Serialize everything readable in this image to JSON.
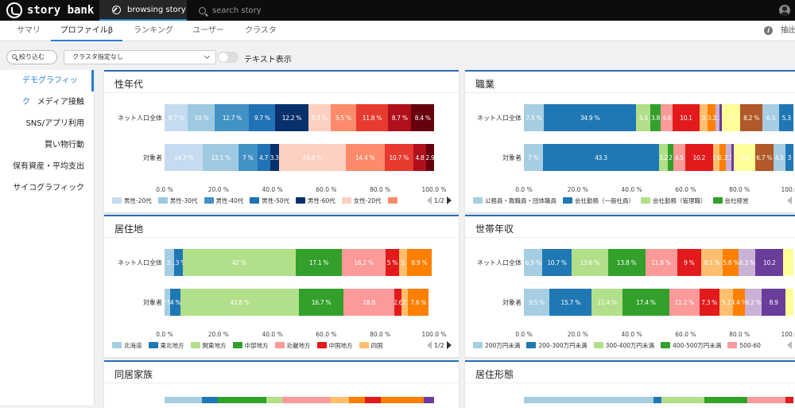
{
  "app": {
    "logo_text": "story bank"
  },
  "top_tabs": {
    "browse": "browsing story",
    "search": "search story"
  },
  "sub_tabs": [
    "サマリ",
    "プロファイルβ",
    "ランキング",
    "ユーザー",
    "クラスタ"
  ],
  "sub_tabs_active": 1,
  "extract_label": "抽出",
  "filter": {
    "narrow_label": "絞り込む",
    "cluster_value": "クラスタ指定なし",
    "text_toggle_label": "テキスト表示",
    "text_toggle_on": false
  },
  "sidebar": {
    "items": [
      "デモグラフィック",
      "メディア接触",
      "SNS/アプリ利用",
      "買い物行動",
      "保有資産・平均支出",
      "サイコグラフィック"
    ],
    "active": 0
  },
  "x_ticks": [
    "0.0 %",
    "20.0 %",
    "40.0 %",
    "60.0 %",
    "80.0 %",
    "100.0 %"
  ],
  "panels": [
    {
      "title": "性年代",
      "chart_data": {
        "type": "bar",
        "stacked": true,
        "orientation": "horizontal",
        "rows": [
          "ネット人口全体",
          "対象者"
        ],
        "segments": [
          {
            "values": [
              8.7,
              14.3
            ],
            "labels": [
              "8.7 %",
              "14.3 %"
            ],
            "color": "#c6dbef"
          },
          {
            "values": [
              10,
              13.1
            ],
            "labels": [
              "10 %",
              "13.1 %"
            ],
            "color": "#9ecae1"
          },
          {
            "values": [
              12.7,
              7
            ],
            "labels": [
              "12.7 %",
              "7 %"
            ],
            "color": "#4292c6"
          },
          {
            "values": [
              9.7,
              4.7
            ],
            "labels": [
              "9.7 %",
              "4.7"
            ],
            "color": "#2171b5"
          },
          {
            "values": [
              12.2,
              3.3
            ],
            "labels": [
              "12.2 %",
              "3.3"
            ],
            "color": "#08306b"
          },
          {
            "values": [
              8.3,
              24.8
            ],
            "labels": [
              "8.3 %",
              "24.8 %"
            ],
            "color": "#fdd0c2"
          },
          {
            "values": [
              9.5,
              14.4
            ],
            "labels": [
              "9.5 %",
              "14.4 %"
            ],
            "color": "#fb8b6a"
          },
          {
            "values": [
              11.8,
              10.7
            ],
            "labels": [
              "11.8 %",
              "10.7 %"
            ],
            "color": "#e63b2e"
          },
          {
            "values": [
              8.7,
              4.8
            ],
            "labels": [
              "8.7 %",
              "4.8"
            ],
            "color": "#b00f1c"
          },
          {
            "values": [
              8.4,
              2.9
            ],
            "labels": [
              "8.4 %",
              "2.9"
            ],
            "color": "#67000d"
          }
        ],
        "xlim": [
          0,
          100
        ]
      },
      "legend": [
        {
          "name": "男性-20代",
          "color": "#c6dbef"
        },
        {
          "name": "男性-30代",
          "color": "#9ecae1"
        },
        {
          "name": "男性-40代",
          "color": "#4292c6"
        },
        {
          "name": "男性-50代",
          "color": "#2171b5"
        },
        {
          "name": "男性-60代",
          "color": "#08306b"
        },
        {
          "name": "女性-20代",
          "color": "#fdd0c2"
        },
        {
          "name": "",
          "color": "#fb8b6a"
        }
      ],
      "pager": "1/2"
    },
    {
      "title": "職業",
      "chart_data": {
        "type": "bar",
        "stacked": true,
        "orientation": "horizontal",
        "rows": [
          "ネット人口全体",
          "対象者"
        ],
        "segments": [
          {
            "values": [
              7.5,
              7
            ],
            "labels": [
              "7.5 %",
              "7 %"
            ],
            "color": "#a6cee3"
          },
          {
            "values": [
              34.9,
              43.3
            ],
            "labels": [
              "34.9 %",
              "43.3"
            ],
            "color": "#1f78b4"
          },
          {
            "values": [
              5.4,
              3.2
            ],
            "labels": [
              "5.4",
              "3.2"
            ],
            "color": "#b2df8a"
          },
          {
            "values": [
              3.8,
              2
            ],
            "labels": [
              "3.8",
              "2"
            ],
            "color": "#33a02c"
          },
          {
            "values": [
              4.6,
              4.5
            ],
            "labels": [
              "4.6",
              "4.5"
            ],
            "color": "#fb9a99"
          },
          {
            "values": [
              10.1,
              10.2
            ],
            "labels": [
              "10.1",
              "10.2"
            ],
            "color": "#e31a1c"
          },
          {
            "values": [
              3,
              2.6
            ],
            "labels": [
              "3",
              "2.6"
            ],
            "color": "#fdbf6f"
          },
          {
            "values": [
              3.2,
              2.3
            ],
            "labels": [
              "3.2",
              "2.3"
            ],
            "color": "#ff7f00"
          },
          {
            "values": [
              1.5,
              2.1
            ],
            "labels": [
              "1.5",
              "2.1"
            ],
            "color": "#cab2d6"
          },
          {
            "values": [
              0.8,
              0.9
            ],
            "labels": [
              "",
              ""
            ],
            "color": "#6a3d9a"
          },
          {
            "values": [
              7,
              7.9
            ],
            "labels": [
              "7",
              "7.9"
            ],
            "color": "#ffff99"
          },
          {
            "values": [
              8.2,
              6.7
            ],
            "labels": [
              "8.2 %",
              "6.7 %"
            ],
            "color": "#b15928"
          },
          {
            "values": [
              6.5,
              4.5
            ],
            "labels": [
              "6.5",
              "4.5"
            ],
            "color": "#a6cee3"
          },
          {
            "values": [
              5.3,
              3
            ],
            "labels": [
              "5.3",
              "3"
            ],
            "color": "#1f78b4"
          }
        ],
        "xlim": [
          0,
          100
        ]
      },
      "legend": [
        {
          "name": "公務員・教職員・団体職員",
          "color": "#a6cee3"
        },
        {
          "name": "会社勤務（一般社員）",
          "color": "#1f78b4"
        },
        {
          "name": "会社勤務（管理職）",
          "color": "#b2df8a"
        },
        {
          "name": "会社経営",
          "color": "#33a02c"
        }
      ],
      "pager": ""
    },
    {
      "title": "居住地",
      "chart_data": {
        "type": "bar",
        "stacked": true,
        "orientation": "horizontal",
        "rows": [
          "ネット人口全体",
          "対象者"
        ],
        "segments": [
          {
            "values": [
              3.4,
              2
            ],
            "labels": [
              "3.",
              "2 %"
            ],
            "color": "#a6cee3"
          },
          {
            "values": [
              3.3,
              4
            ],
            "labels": [
              "3.3 %",
              "4 %"
            ],
            "color": "#1f78b4"
          },
          {
            "values": [
              42,
              43.8
            ],
            "labels": [
              "42 %",
              "43.8 %"
            ],
            "color": "#b2df8a"
          },
          {
            "values": [
              17.1,
              16.7
            ],
            "labels": [
              "17.1 %",
              "16.7 %"
            ],
            "color": "#33a02c"
          },
          {
            "values": [
              16.2,
              18.8
            ],
            "labels": [
              "16.2 %",
              "18.8"
            ],
            "color": "#fb9a99"
          },
          {
            "values": [
              5,
              2.6
            ],
            "labels": [
              "5 %",
              "2.6"
            ],
            "color": "#e31a1c"
          },
          {
            "values": [
              3.1,
              2.5
            ],
            "labels": [
              "3.",
              "2."
            ],
            "color": "#fdbf6f"
          },
          {
            "values": [
              8.9,
              7.6
            ],
            "labels": [
              "8.9 %",
              "7.6 %"
            ],
            "color": "#ff7f00"
          }
        ],
        "xlim": [
          0,
          100
        ]
      },
      "legend": [
        {
          "name": "北海道",
          "color": "#a6cee3"
        },
        {
          "name": "東北地方",
          "color": "#1f78b4"
        },
        {
          "name": "関東地方",
          "color": "#b2df8a"
        },
        {
          "name": "中部地方",
          "color": "#33a02c"
        },
        {
          "name": "近畿地方",
          "color": "#fb9a99"
        },
        {
          "name": "中国地方",
          "color": "#e31a1c"
        },
        {
          "name": "四国",
          "color": "#fdbf6f"
        }
      ],
      "pager": "1/2"
    },
    {
      "title": "世帯年収",
      "chart_data": {
        "type": "bar",
        "stacked": true,
        "orientation": "horizontal",
        "rows": [
          "ネット人口全体",
          "対象者"
        ],
        "segments": [
          {
            "values": [
              6.9,
              9.5
            ],
            "labels": [
              "6.9 %",
              "9.5 %"
            ],
            "color": "#a6cee3"
          },
          {
            "values": [
              10.7,
              15.7
            ],
            "labels": [
              "10.7 %",
              "15.7 %"
            ],
            "color": "#1f78b4"
          },
          {
            "values": [
              13.6,
              11.4
            ],
            "labels": [
              "13.6 %",
              "11.4 %"
            ],
            "color": "#b2df8a"
          },
          {
            "values": [
              13.8,
              17.4
            ],
            "labels": [
              "13.8 %",
              "17.4 %"
            ],
            "color": "#33a02c"
          },
          {
            "values": [
              11.8,
              11.2
            ],
            "labels": [
              "11.8 %",
              "11.2 %"
            ],
            "color": "#fb9a99"
          },
          {
            "values": [
              9,
              7.3
            ],
            "labels": [
              "9 %",
              "7.3 %"
            ],
            "color": "#e31a1c"
          },
          {
            "values": [
              8.1,
              5.2
            ],
            "labels": [
              "8.1 %",
              "5.2"
            ],
            "color": "#fdbf6f"
          },
          {
            "values": [
              5.8,
              4.4
            ],
            "labels": [
              "5.8 %",
              "4.4 %"
            ],
            "color": "#ff7f00"
          },
          {
            "values": [
              6.3,
              6.2
            ],
            "labels": [
              "6.3 %",
              "6.2 %"
            ],
            "color": "#cab2d6"
          },
          {
            "values": [
              10.2,
              8.9
            ],
            "labels": [
              "10.2",
              "8.9"
            ],
            "color": "#6a3d9a"
          },
          {
            "values": [
              3.8,
              2.9
            ],
            "labels": [
              "",
              ""
            ],
            "color": "#ffff99"
          }
        ],
        "xlim": [
          0,
          100
        ]
      },
      "legend": [
        {
          "name": "200万円未満",
          "color": "#a6cee3"
        },
        {
          "name": "200-300万円未満",
          "color": "#1f78b4"
        },
        {
          "name": "300-400万円未満",
          "color": "#b2df8a"
        },
        {
          "name": "400-500万円未満",
          "color": "#33a02c"
        },
        {
          "name": "500-60",
          "color": "#fb9a99"
        }
      ],
      "pager": ""
    },
    {
      "title": "同居家族"
    },
    {
      "title": "居住形態"
    }
  ]
}
